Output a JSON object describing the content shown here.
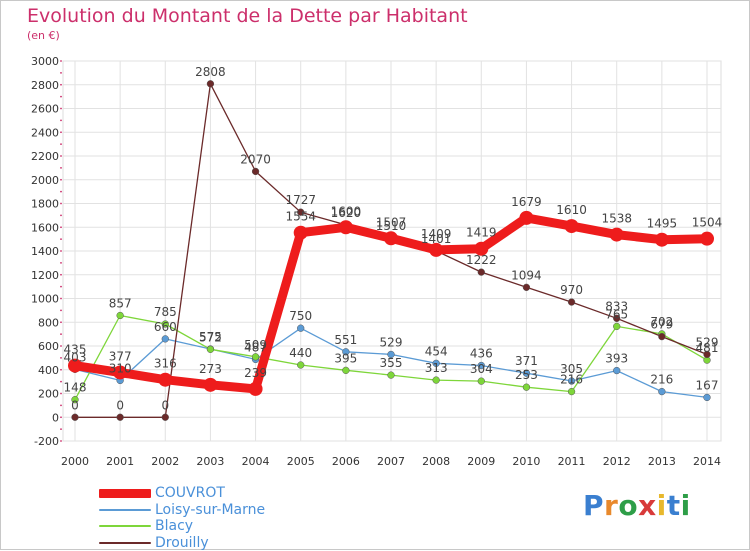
{
  "title": "Evolution du Montant de la Dette par Habitant",
  "unit": "(en €)",
  "brand": "Proxiti",
  "chart_data": {
    "type": "line",
    "title": "Evolution du Montant de la Dette par Habitant",
    "ylabel": "(en €)",
    "ylim": [
      -200,
      3000
    ],
    "yticks": [
      -200,
      0,
      200,
      400,
      600,
      800,
      1000,
      1200,
      1400,
      1600,
      1800,
      2000,
      2200,
      2400,
      2600,
      2800,
      3000
    ],
    "grid": true,
    "legend_position": "bottom-left",
    "x": [
      "2000",
      "2001",
      "2002",
      "2003",
      "2004",
      "2005",
      "2006",
      "2007",
      "2008",
      "2009",
      "2010",
      "2011",
      "2012",
      "2013",
      "2014"
    ],
    "series": [
      {
        "name": "COUVROT",
        "color": "#ee1c1c",
        "values": [
          435,
          377,
          316,
          273,
          239,
          1554,
          1600,
          1507,
          1409,
          1419,
          1679,
          1610,
          1538,
          1495,
          1504
        ]
      },
      {
        "name": "Loisy-sur-Marne",
        "color": "#5b9bd5",
        "values": [
          403,
          310,
          660,
          575,
          487,
          750,
          551,
          529,
          454,
          436,
          371,
          305,
          393,
          216,
          167
        ]
      },
      {
        "name": "Blacy",
        "color": "#7ed63a",
        "values": [
          148,
          857,
          785,
          572,
          509,
          440,
          395,
          355,
          313,
          304,
          253,
          216,
          765,
          702,
          481
        ]
      },
      {
        "name": "Drouilly",
        "color": "#6b2a2a",
        "values": [
          0,
          0,
          0,
          2808,
          2070,
          1727,
          1620,
          1510,
          1401,
          1222,
          1094,
          970,
          833,
          679,
          529
        ]
      }
    ]
  }
}
